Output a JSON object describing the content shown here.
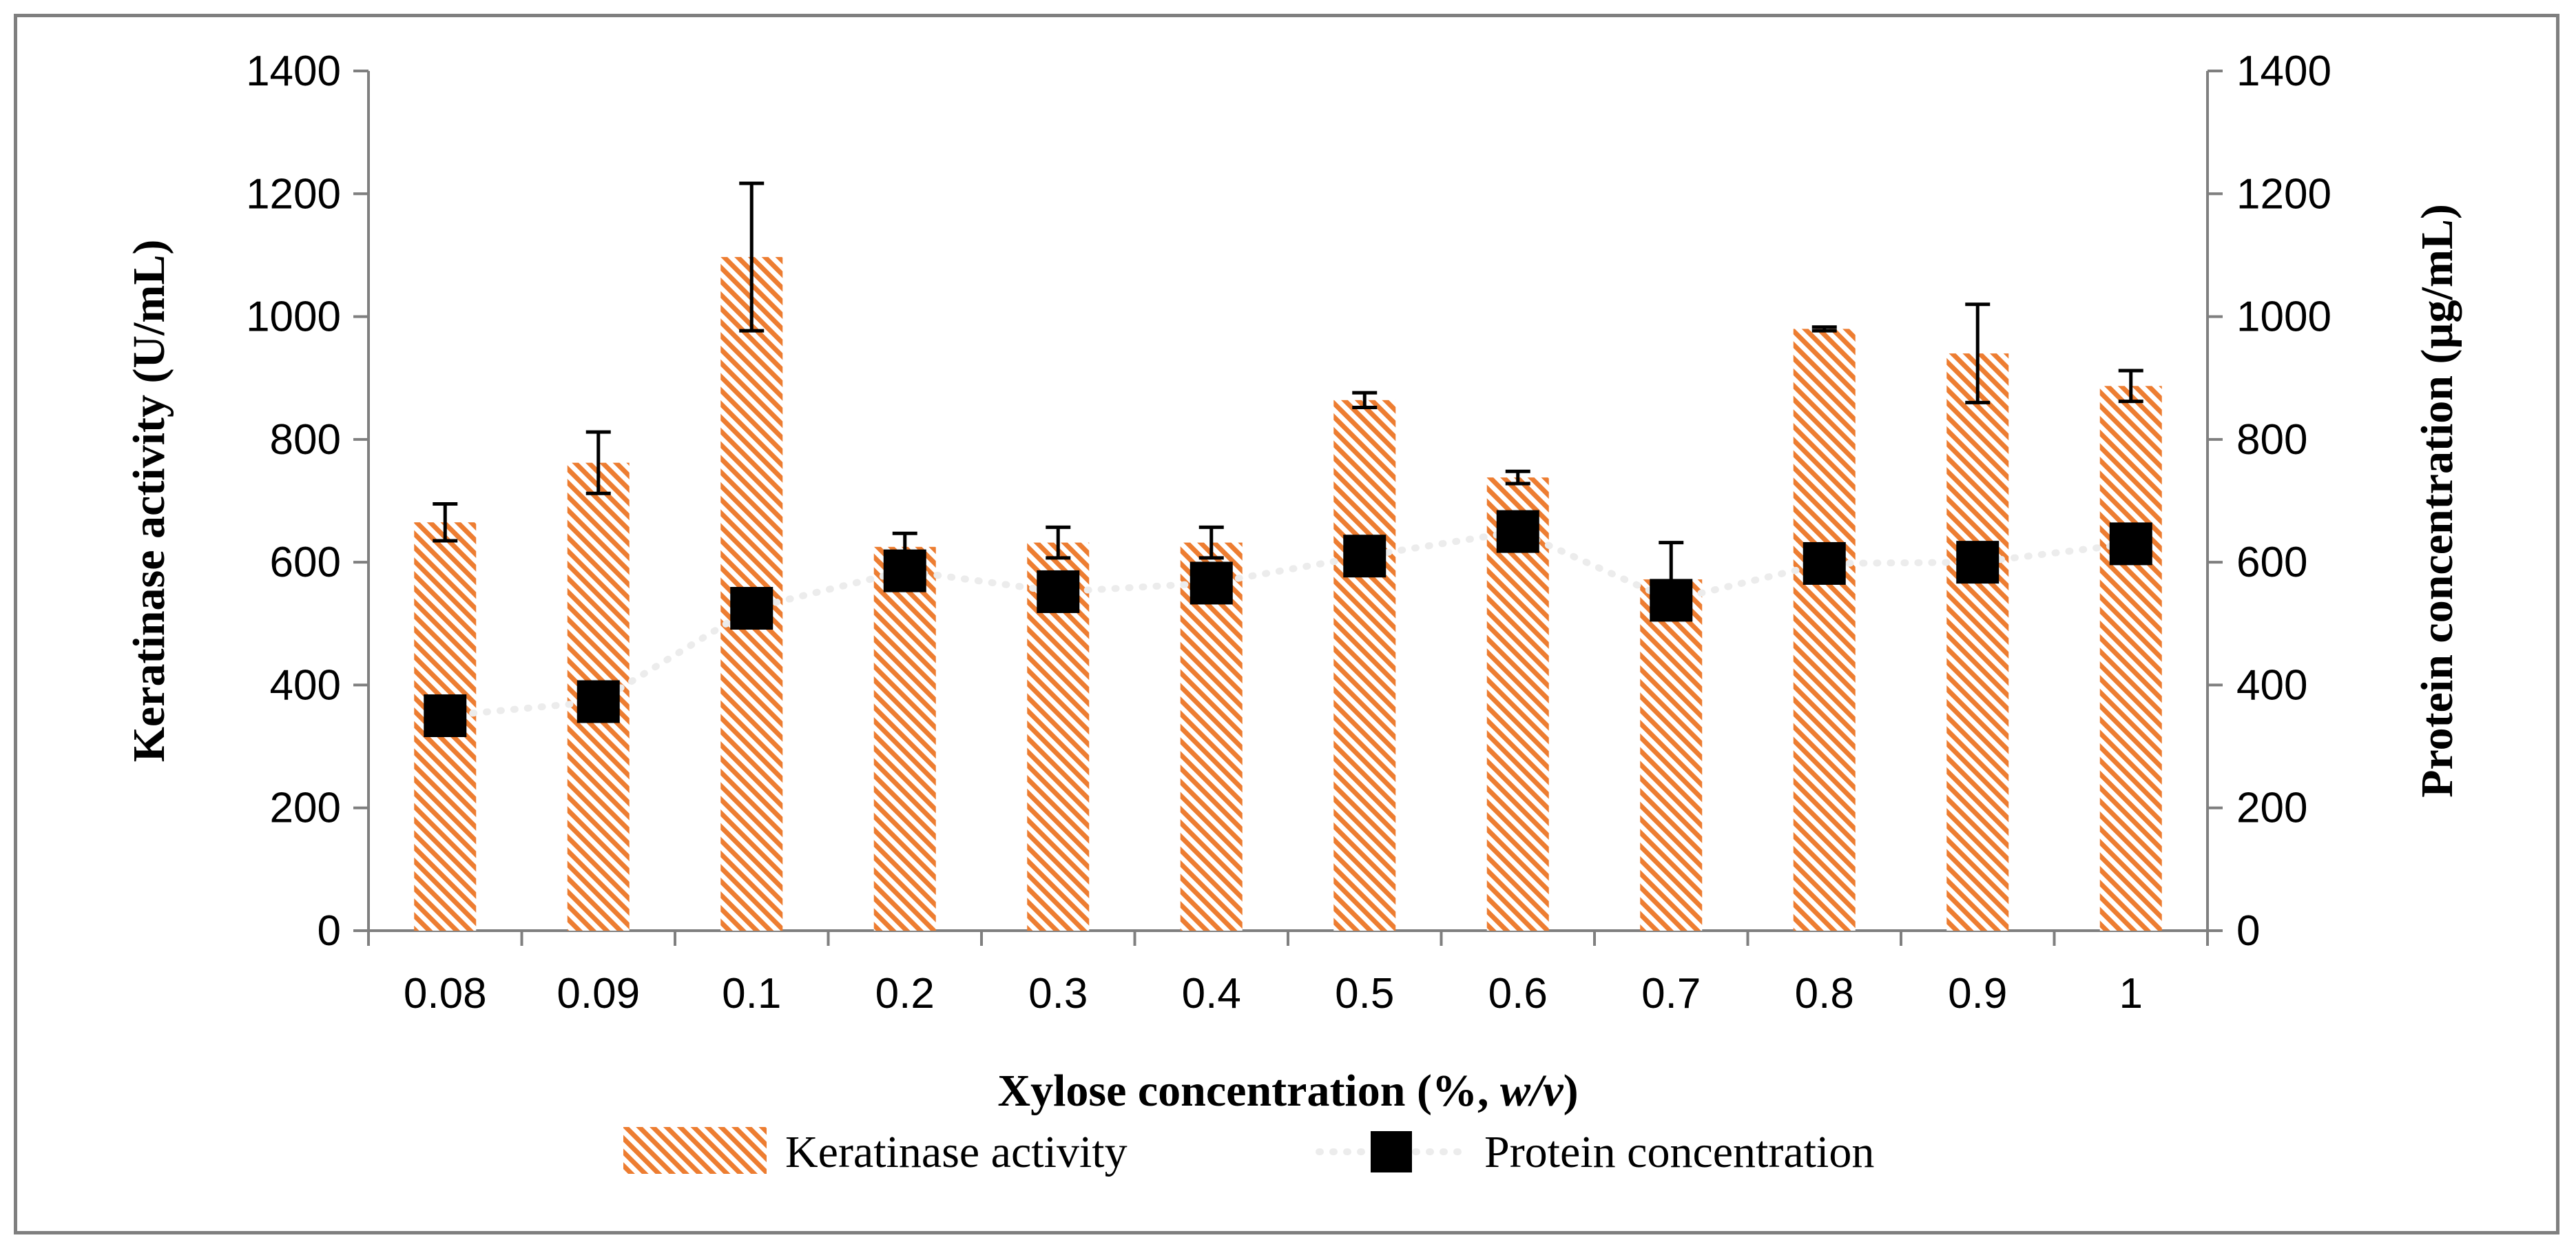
{
  "chart_data": {
    "type": "bar",
    "title": "",
    "xlabel": "Xylose concentration (%, ",
    "xlabel_italic": "w/v",
    "xlabel_end": ")",
    "ylabel": "Keratinase activity (U/mL)",
    "y2label": "Protein concentration (µg/mL)",
    "categories": [
      "0.08",
      "0.09",
      "0.1",
      "0.2",
      "0.3",
      "0.4",
      "0.5",
      "0.6",
      "0.7",
      "0.8",
      "0.9",
      "1"
    ],
    "ylim": [
      0,
      1400
    ],
    "y2lim": [
      0,
      1400
    ],
    "yticks": [
      "0",
      "200",
      "400",
      "600",
      "800",
      "1000",
      "1200",
      "1400"
    ],
    "y2ticks": [
      "0",
      "200",
      "400",
      "600",
      "800",
      "1000",
      "1200",
      "1400"
    ],
    "series": [
      {
        "name": "Keratinase activity",
        "type": "bar",
        "axis": "left",
        "color": "#ed7d31",
        "values": [
          665,
          762,
          1097,
          625,
          632,
          632,
          864,
          738,
          572,
          980,
          940,
          887
        ],
        "errors": [
          30,
          50,
          120,
          22,
          25,
          25,
          12,
          10,
          60,
          3,
          80,
          25
        ]
      },
      {
        "name": "Protein concentration",
        "type": "line",
        "axis": "right",
        "color": "#000000",
        "line_color": "#ececec",
        "values": [
          350,
          373,
          525,
          586,
          552,
          566,
          610,
          650,
          538,
          598,
          600,
          630
        ]
      }
    ],
    "legend_position": "bottom-center",
    "grid": false
  }
}
